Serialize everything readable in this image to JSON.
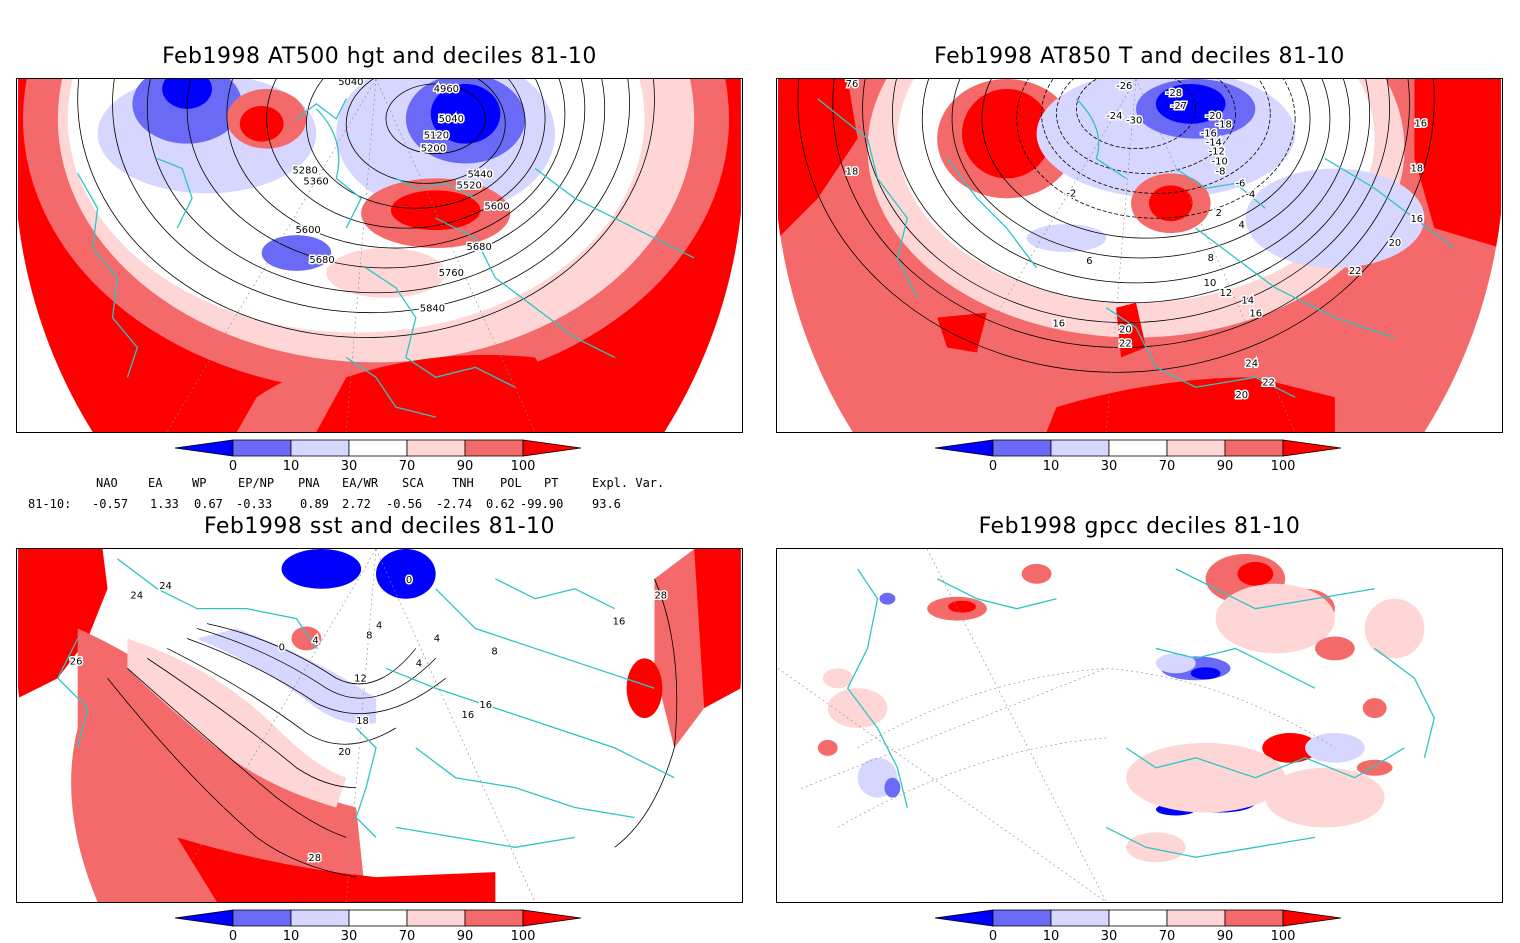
{
  "colors": {
    "d0": "#0000ff",
    "d10": "#6a6af6",
    "d30": "#d6d6ff",
    "mid": "#ffffff",
    "d70": "#ffd6d6",
    "d90": "#f46a6a",
    "d100": "#ff0000",
    "coast": "#2ec4c4"
  },
  "panels": [
    {
      "title": "Feb1998 AT500 hgt and deciles 81-10",
      "contour_labels": [
        "4960",
        "5040",
        "5040",
        "5120",
        "5200",
        "5280",
        "5360",
        "5440",
        "5520",
        "5600",
        "5600",
        "5680",
        "5680",
        "5760",
        "5840"
      ],
      "legend_ticks": [
        "0",
        "10",
        "30",
        "70",
        "90",
        "100"
      ]
    },
    {
      "title": "Feb1998 AT850 T and deciles 81-10",
      "contour_labels": [
        "-26",
        "-28",
        "-30",
        "-24",
        "-27",
        "-20",
        "-18",
        "-16",
        "-14",
        "-12",
        "-10",
        "-8",
        "-6",
        "-4",
        "-2",
        "2",
        "4",
        "6",
        "8",
        "10",
        "12",
        "14",
        "16",
        "16",
        "16",
        "16",
        "18",
        "18",
        "20",
        "20",
        "20",
        "22",
        "22",
        "22",
        "24",
        "76"
      ],
      "legend_ticks": [
        "0",
        "10",
        "30",
        "70",
        "90",
        "100"
      ]
    },
    {
      "title": "Feb1998 sst and deciles 81-10",
      "contour_labels": [
        "0",
        "0",
        "4",
        "4",
        "4",
        "4",
        "8",
        "8",
        "12",
        "16",
        "16",
        "16",
        "18",
        "20",
        "24",
        "24",
        "26",
        "28",
        "28"
      ],
      "legend_ticks": [
        "0",
        "10",
        "30",
        "70",
        "90",
        "100"
      ]
    },
    {
      "title": "Feb1998 gpcc deciles 81-10",
      "contour_labels": [],
      "legend_ticks": [
        "0",
        "10",
        "30",
        "70",
        "90",
        "100"
      ]
    }
  ],
  "indices": {
    "headers": [
      "NAO",
      "EA",
      "WP",
      "EP/NP",
      "PNA",
      "EA/WR",
      "SCA",
      "TNH",
      "POL",
      "PT",
      "Expl. Var."
    ],
    "row_label": "81-10:",
    "values": [
      "-0.57",
      "1.33",
      "0.67",
      "-0.33",
      "0.89",
      "2.72",
      "-0.56",
      "-2.74",
      "0.62",
      "-99.90",
      "93.6"
    ]
  }
}
